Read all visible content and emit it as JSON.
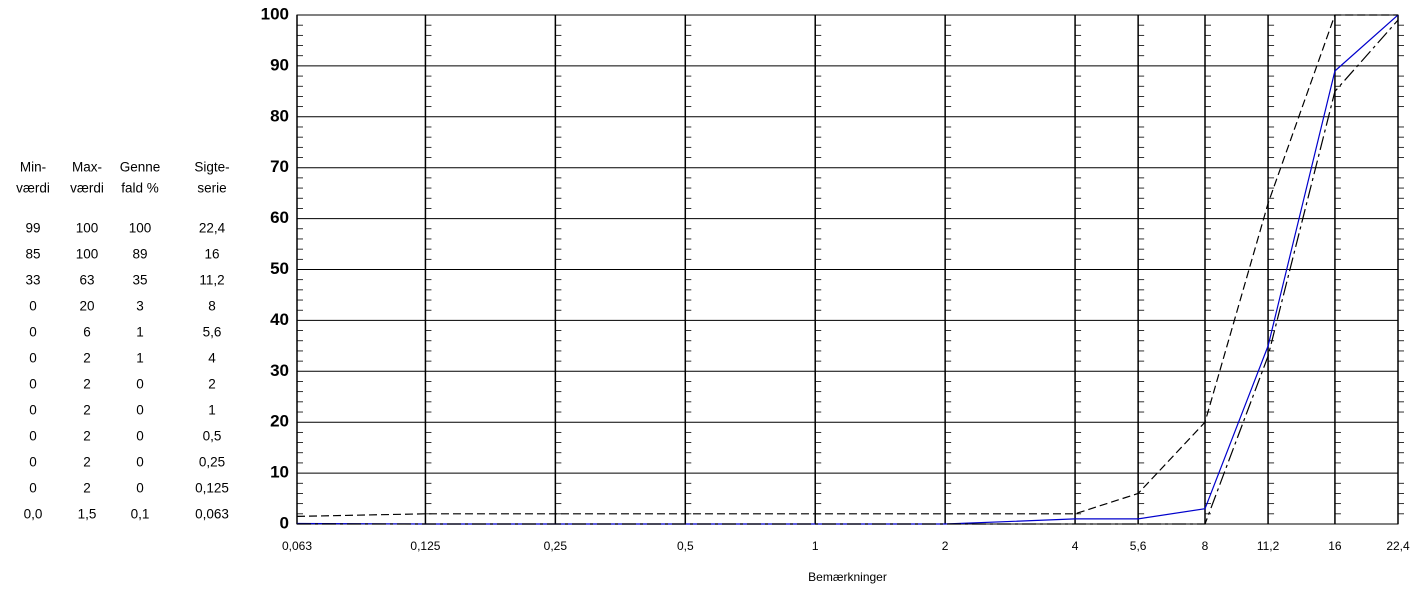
{
  "table": {
    "headers": [
      [
        "Min-",
        "værdi"
      ],
      [
        "Max-",
        "værdi"
      ],
      [
        "Genne",
        "fald %"
      ],
      [
        "Sigte-",
        "serie"
      ]
    ],
    "rows": [
      [
        "99",
        "100",
        "100",
        "22,4"
      ],
      [
        "85",
        "100",
        "89",
        "16"
      ],
      [
        "33",
        "63",
        "35",
        "11,2"
      ],
      [
        "0",
        "20",
        "3",
        "8"
      ],
      [
        "0",
        "6",
        "1",
        "5,6"
      ],
      [
        "0",
        "2",
        "1",
        "4"
      ],
      [
        "0",
        "2",
        "0",
        "2"
      ],
      [
        "0",
        "2",
        "0",
        "1"
      ],
      [
        "0",
        "2",
        "0",
        "0,5"
      ],
      [
        "0",
        "2",
        "0",
        "0,25"
      ],
      [
        "0",
        "2",
        "0",
        "0,125"
      ],
      [
        "0,0",
        "1,5",
        "0,1",
        "0,063"
      ]
    ]
  },
  "chart_data": {
    "type": "line",
    "x_label": "Bemærkninger",
    "log_x": true,
    "grid": true,
    "x": [
      0.063,
      0.125,
      0.25,
      0.5,
      1,
      2,
      4,
      5.6,
      8,
      11.2,
      16,
      22.4
    ],
    "series": [
      {
        "color": "#0000cc",
        "dash": "none",
        "values": [
          0.1,
          0,
          0,
          0,
          0,
          0,
          1,
          1,
          3,
          35,
          89,
          100
        ]
      },
      {
        "color": "#000000",
        "dash": "8,4",
        "values": [
          1.5,
          2,
          2,
          2,
          2,
          2,
          2,
          6,
          20,
          63,
          100,
          100
        ]
      },
      {
        "color": "#000000",
        "dash": "14,4,3,4",
        "values": [
          0,
          0,
          0,
          0,
          0,
          0,
          0,
          0,
          0,
          33,
          85,
          99
        ]
      }
    ],
    "xlim": [
      0.063,
      22.4
    ],
    "xticks": [
      {
        "value": 0.063,
        "label": "0,063"
      },
      {
        "value": 0.125,
        "label": "0,125"
      },
      {
        "value": 0.25,
        "label": "0,25"
      },
      {
        "value": 0.5,
        "label": "0,5"
      },
      1,
      2,
      4,
      {
        "value": 5.6,
        "label": "5,6"
      },
      8,
      {
        "value": 11.2,
        "label": "11,2"
      },
      16,
      {
        "value": 22.4,
        "label": "22,4"
      }
    ],
    "ylim": [
      0,
      100
    ],
    "yticks": [
      0,
      10,
      20,
      30,
      40,
      50,
      60,
      70,
      80,
      90,
      100
    ]
  }
}
